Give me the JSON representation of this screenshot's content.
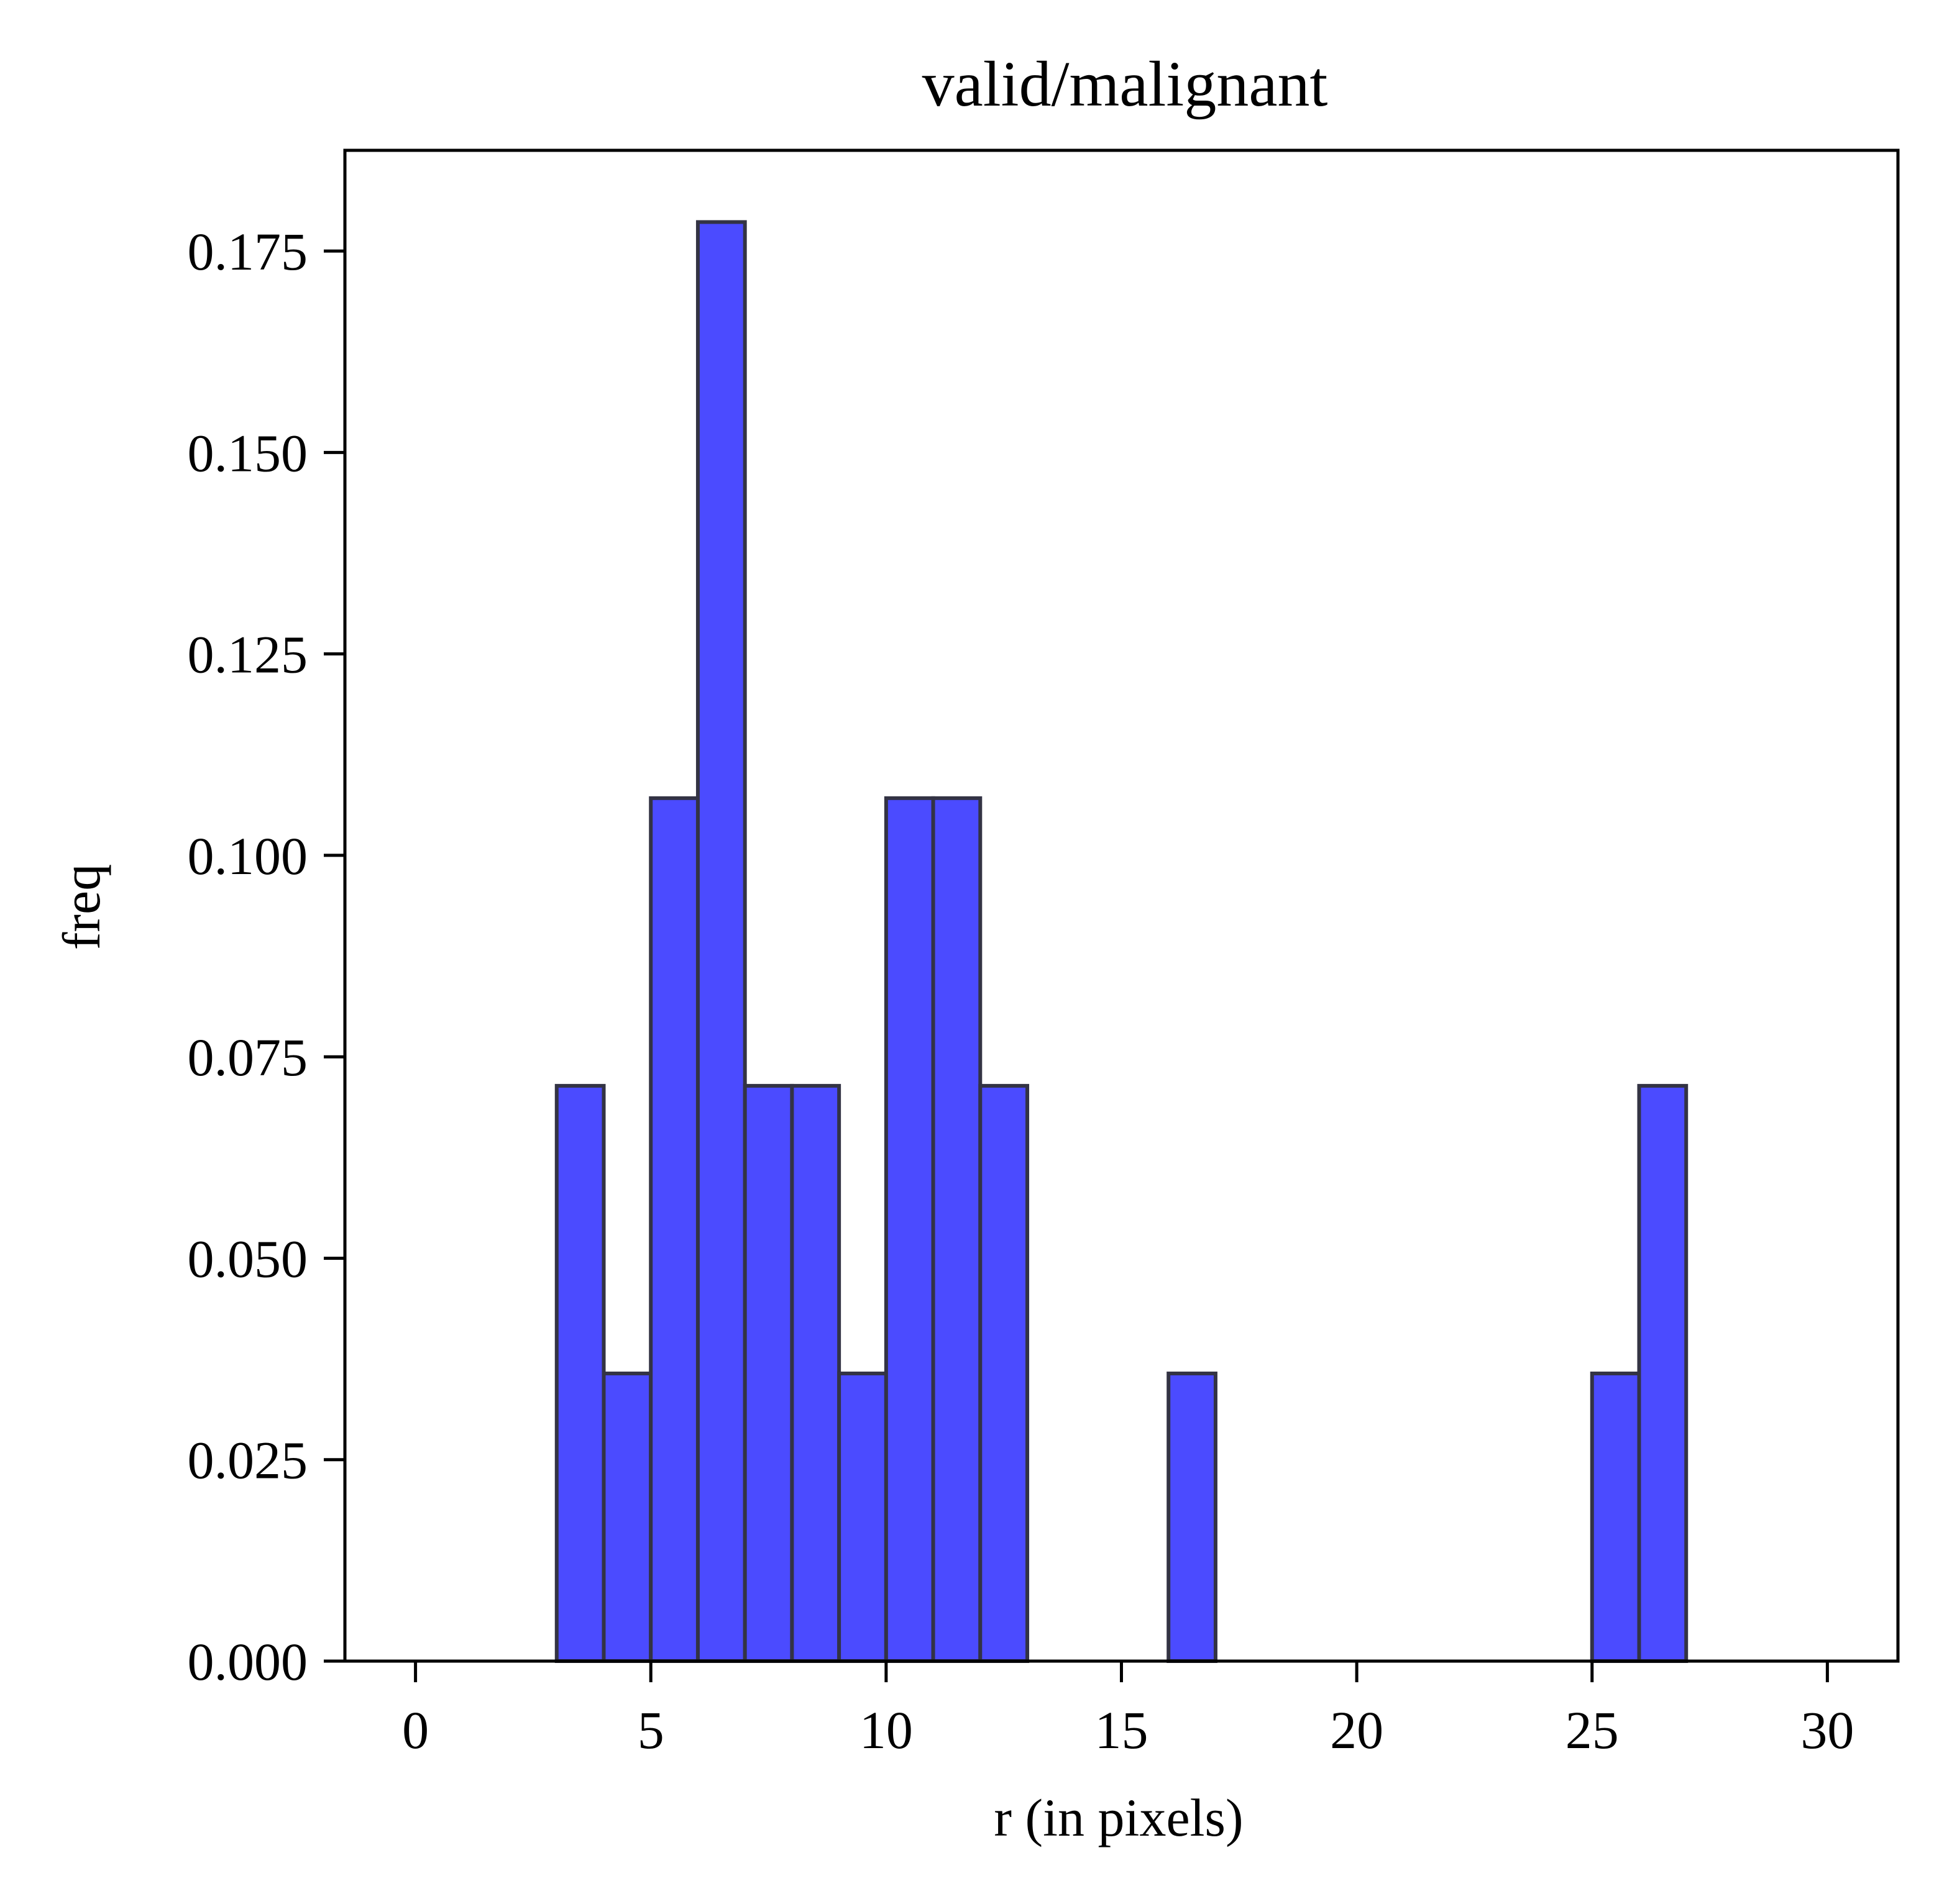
{
  "chart_data": {
    "type": "bar",
    "title": "valid/malignant",
    "xlabel": "r (in pixels)",
    "ylabel": "freq",
    "xlim": [
      -1.5,
      31.5
    ],
    "ylim": [
      0,
      0.1875
    ],
    "x_ticks": [
      {
        "value": 0,
        "label": "0"
      },
      {
        "value": 5,
        "label": "5"
      },
      {
        "value": 10,
        "label": "10"
      },
      {
        "value": 15,
        "label": "15"
      },
      {
        "value": 20,
        "label": "20"
      },
      {
        "value": 25,
        "label": "25"
      },
      {
        "value": 30,
        "label": "30"
      }
    ],
    "y_ticks": [
      {
        "value": 0.0,
        "label": "0.000"
      },
      {
        "value": 0.025,
        "label": "0.025"
      },
      {
        "value": 0.05,
        "label": "0.050"
      },
      {
        "value": 0.075,
        "label": "0.075"
      },
      {
        "value": 0.1,
        "label": "0.100"
      },
      {
        "value": 0.125,
        "label": "0.125"
      },
      {
        "value": 0.15,
        "label": "0.150"
      },
      {
        "value": 0.175,
        "label": "0.175"
      }
    ],
    "bin_edges": [
      0,
      1,
      2,
      3,
      4,
      5,
      6,
      7,
      8,
      9,
      10,
      11,
      12,
      13,
      14,
      15,
      16,
      17,
      18,
      19,
      20,
      21,
      22,
      23,
      24,
      25,
      26,
      27,
      28,
      29,
      30
    ],
    "values": [
      0,
      0,
      0,
      0.0714,
      0.0357,
      0.1071,
      0.1786,
      0.0714,
      0.0714,
      0.0357,
      0.1071,
      0.1071,
      0.0714,
      0,
      0,
      0,
      0.0357,
      0,
      0,
      0,
      0,
      0,
      0,
      0,
      0,
      0.0357,
      0.0714,
      0,
      0,
      0
    ],
    "grid": false,
    "legend": "none",
    "colors": {
      "bar_fill": "#4b4bff",
      "bar_edge": "#333344",
      "axes": "#000000"
    }
  }
}
